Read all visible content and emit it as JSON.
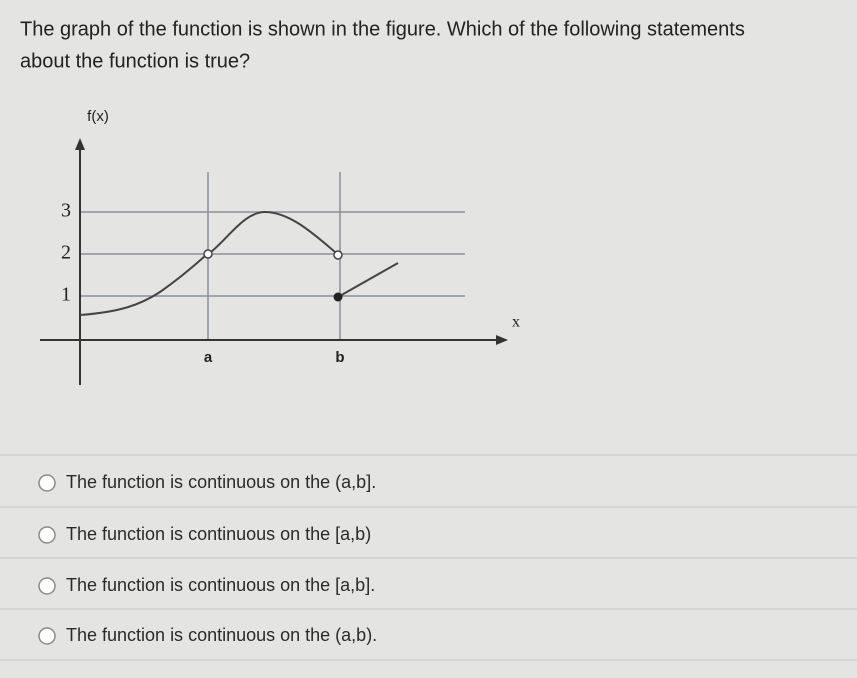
{
  "question": {
    "line1": "The graph of the function is shown in the figure. Which of the following statements",
    "line2": "about the function is true?"
  },
  "figure": {
    "y_axis_label": "f(x)",
    "x_axis_label": "x",
    "y_labels": [
      "3",
      "2",
      "1"
    ],
    "x_labels": [
      "a",
      "b"
    ]
  },
  "options": [
    "The function is continuous on the (a,b].",
    "The function is continuous on the [a,b)",
    "The function is continuous on the [a,b].",
    "The function is continuous on the (a,b)."
  ]
}
